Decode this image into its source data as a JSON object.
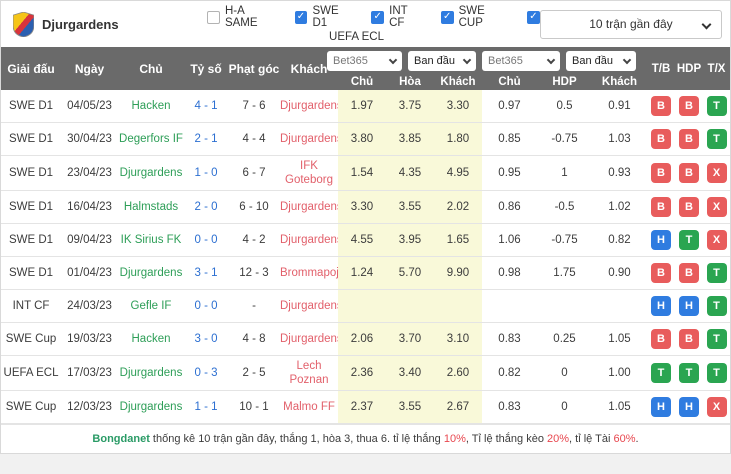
{
  "header": {
    "team": "Djurgardens",
    "filters": [
      {
        "label": "H-A SAME",
        "checked": false
      },
      {
        "label": "SWE D1",
        "checked": true
      },
      {
        "label": "INT CF",
        "checked": true
      },
      {
        "label": "SWE CUP",
        "checked": true
      },
      {
        "label": "UEFA ECL",
        "checked": true
      }
    ],
    "range_select": "10 trận gần đây"
  },
  "icons": {
    "check": "✓"
  },
  "table": {
    "columns": [
      "Giải đấu",
      "Ngày",
      "Chủ",
      "Tỷ số",
      "Phạt góc",
      "Khách"
    ],
    "dropdowns": [
      {
        "value": "Bet365"
      },
      {
        "value": "Ban đầu"
      },
      {
        "value": "Bet365"
      },
      {
        "value": "Ban đầu"
      }
    ],
    "sub_1x2": [
      "Chủ",
      "Hòa",
      "Khách"
    ],
    "sub_hdp": [
      "Chủ",
      "HDP",
      "Khách"
    ],
    "result_cols": [
      "T/B",
      "HDP",
      "T/X"
    ],
    "rows": [
      {
        "league": "SWE D1",
        "date": "04/05/23",
        "home": "Hacken",
        "score": "4 - 1",
        "corner": "7 - 6",
        "away": "Djurgardens",
        "odds": [
          "1.97",
          "3.75",
          "3.30"
        ],
        "hdp": [
          "0.97",
          "0.5",
          "0.91"
        ],
        "results": [
          "B",
          "B",
          "T"
        ]
      },
      {
        "league": "SWE D1",
        "date": "30/04/23",
        "home": "Degerfors IF",
        "score": "2 - 1",
        "corner": "4 - 4",
        "away": "Djurgardens",
        "odds": [
          "3.80",
          "3.85",
          "1.80"
        ],
        "hdp": [
          "0.85",
          "-0.75",
          "1.03"
        ],
        "results": [
          "B",
          "B",
          "T"
        ]
      },
      {
        "league": "SWE D1",
        "date": "23/04/23",
        "home": "Djurgardens",
        "score": "1 - 0",
        "corner": "6 - 7",
        "away": "IFK Goteborg",
        "odds": [
          "1.54",
          "4.35",
          "4.95"
        ],
        "hdp": [
          "0.95",
          "1",
          "0.93"
        ],
        "results": [
          "B",
          "B",
          "X"
        ]
      },
      {
        "league": "SWE D1",
        "date": "16/04/23",
        "home": "Halmstads",
        "score": "2 - 0",
        "corner": "6 - 10",
        "away": "Djurgardens",
        "odds": [
          "3.30",
          "3.55",
          "2.02"
        ],
        "hdp": [
          "0.86",
          "-0.5",
          "1.02"
        ],
        "results": [
          "B",
          "B",
          "X"
        ]
      },
      {
        "league": "SWE D1",
        "date": "09/04/23",
        "home": "IK Sirius FK",
        "score": "0 - 0",
        "corner": "4 - 2",
        "away": "Djurgardens",
        "odds": [
          "4.55",
          "3.95",
          "1.65"
        ],
        "hdp": [
          "1.06",
          "-0.75",
          "0.82"
        ],
        "results": [
          "H",
          "T",
          "X"
        ]
      },
      {
        "league": "SWE D1",
        "date": "01/04/23",
        "home": "Djurgardens",
        "score": "3 - 1",
        "corner": "12 - 3",
        "away": "Brommapojkarna",
        "odds": [
          "1.24",
          "5.70",
          "9.90"
        ],
        "hdp": [
          "0.98",
          "1.75",
          "0.90"
        ],
        "results": [
          "B",
          "B",
          "T"
        ]
      },
      {
        "league": "INT CF",
        "date": "24/03/23",
        "home": "Gefle IF",
        "score": "0 - 0",
        "corner": "-",
        "away": "Djurgardens",
        "odds": [
          "",
          "",
          ""
        ],
        "hdp": [
          "",
          "",
          ""
        ],
        "results": [
          "H",
          "H",
          "T"
        ]
      },
      {
        "league": "SWE Cup",
        "date": "19/03/23",
        "home": "Hacken",
        "score": "3 - 0",
        "corner": "4 - 8",
        "away": "Djurgardens",
        "odds": [
          "2.06",
          "3.70",
          "3.10"
        ],
        "hdp": [
          "0.83",
          "0.25",
          "1.05"
        ],
        "results": [
          "B",
          "B",
          "T"
        ]
      },
      {
        "league": "UEFA ECL",
        "date": "17/03/23",
        "home": "Djurgardens",
        "score": "0 - 3",
        "corner": "2 - 5",
        "away": "Lech Poznan",
        "odds": [
          "2.36",
          "3.40",
          "2.60"
        ],
        "hdp": [
          "0.82",
          "0",
          "1.00"
        ],
        "results": [
          "T",
          "T",
          "T"
        ]
      },
      {
        "league": "SWE Cup",
        "date": "12/03/23",
        "home": "Djurgardens",
        "score": "1 - 1",
        "corner": "10 - 1",
        "away": "Malmo FF",
        "odds": [
          "2.37",
          "3.55",
          "2.67"
        ],
        "hdp": [
          "0.83",
          "0",
          "1.05"
        ],
        "results": [
          "H",
          "H",
          "X"
        ]
      }
    ]
  },
  "badge_colors": {
    "B": "#e85c5c",
    "H": "#2f7ce0",
    "T": "#2aa551",
    "X": "#e85c5c"
  },
  "footer": {
    "segments": [
      {
        "text": "Bongdanet",
        "style": "brand"
      },
      {
        "text": " thống kê 10 trận gần đây, thắng 1, hòa 3, thua 6. tỉ lệ thắng ",
        "style": "normal"
      },
      {
        "text": "10%",
        "style": "highlight"
      },
      {
        "text": ", Tỉ lệ thắng kèo ",
        "style": "normal"
      },
      {
        "text": "20%",
        "style": "highlight"
      },
      {
        "text": ", tỉ lệ Tài ",
        "style": "normal"
      },
      {
        "text": "60%",
        "style": "highlight"
      },
      {
        "text": ".",
        "style": "normal"
      }
    ]
  }
}
